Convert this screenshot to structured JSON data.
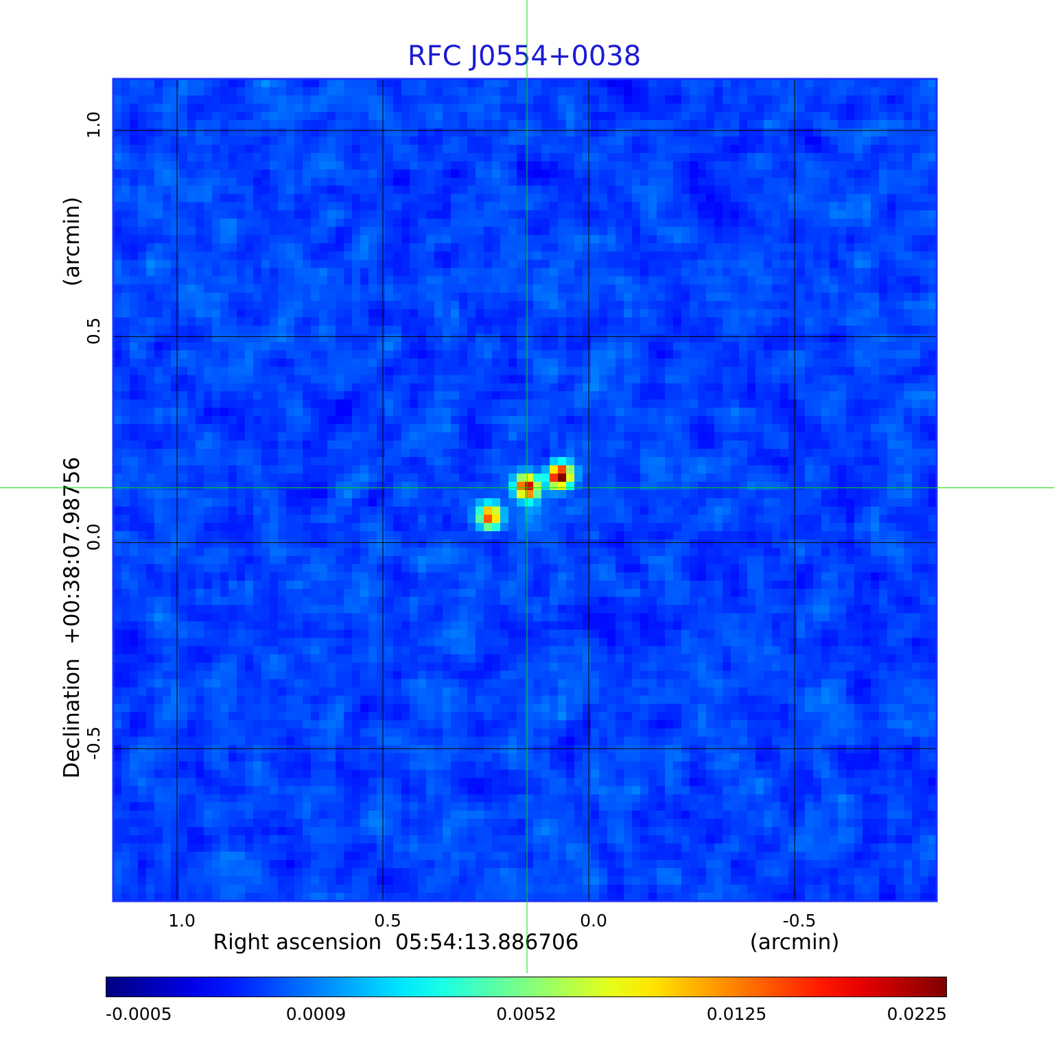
{
  "chart_data": {
    "type": "heatmap",
    "title": "RFC J0554+0038",
    "xlabel": "Right ascension  05:54:13.886706",
    "xunit": "(arcmin)",
    "ylabel": "Declination  +00:38:07.98756",
    "yunit": "(arcmin)",
    "x_ticks": [
      {
        "value": 1.0,
        "label": "1.0"
      },
      {
        "value": 0.5,
        "label": "0.5"
      },
      {
        "value": 0.0,
        "label": "0.0"
      },
      {
        "value": -0.5,
        "label": "-0.5"
      }
    ],
    "y_ticks": [
      {
        "value": 1.0,
        "label": "1.0"
      },
      {
        "value": 0.5,
        "label": "0.5"
      },
      {
        "value": 0.0,
        "label": "0.0"
      },
      {
        "value": -0.5,
        "label": "-0.5"
      }
    ],
    "xlim": [
      1.155,
      -0.845
    ],
    "ylim": [
      -0.87,
      1.125
    ],
    "grid": true,
    "colormap": "jet",
    "colorbar_ticks": [
      "-0.0005",
      "0.0009",
      "0.0052",
      "0.0125",
      "0.0225"
    ],
    "colorbar_range": [
      -0.0005,
      0.0225
    ],
    "sources": [
      {
        "x": 0.07,
        "y": 0.16,
        "peak": 0.0225
      },
      {
        "x": 0.15,
        "y": 0.135,
        "peak": 0.02
      },
      {
        "x": 0.24,
        "y": 0.063,
        "peak": 0.017
      }
    ],
    "crosshair": {
      "x": 0.15,
      "y": 0.133
    },
    "colors": {
      "title": "#1a1ad6",
      "crosshair": "#00e000",
      "grid": "#000000",
      "frame": "#1a33ff"
    }
  }
}
